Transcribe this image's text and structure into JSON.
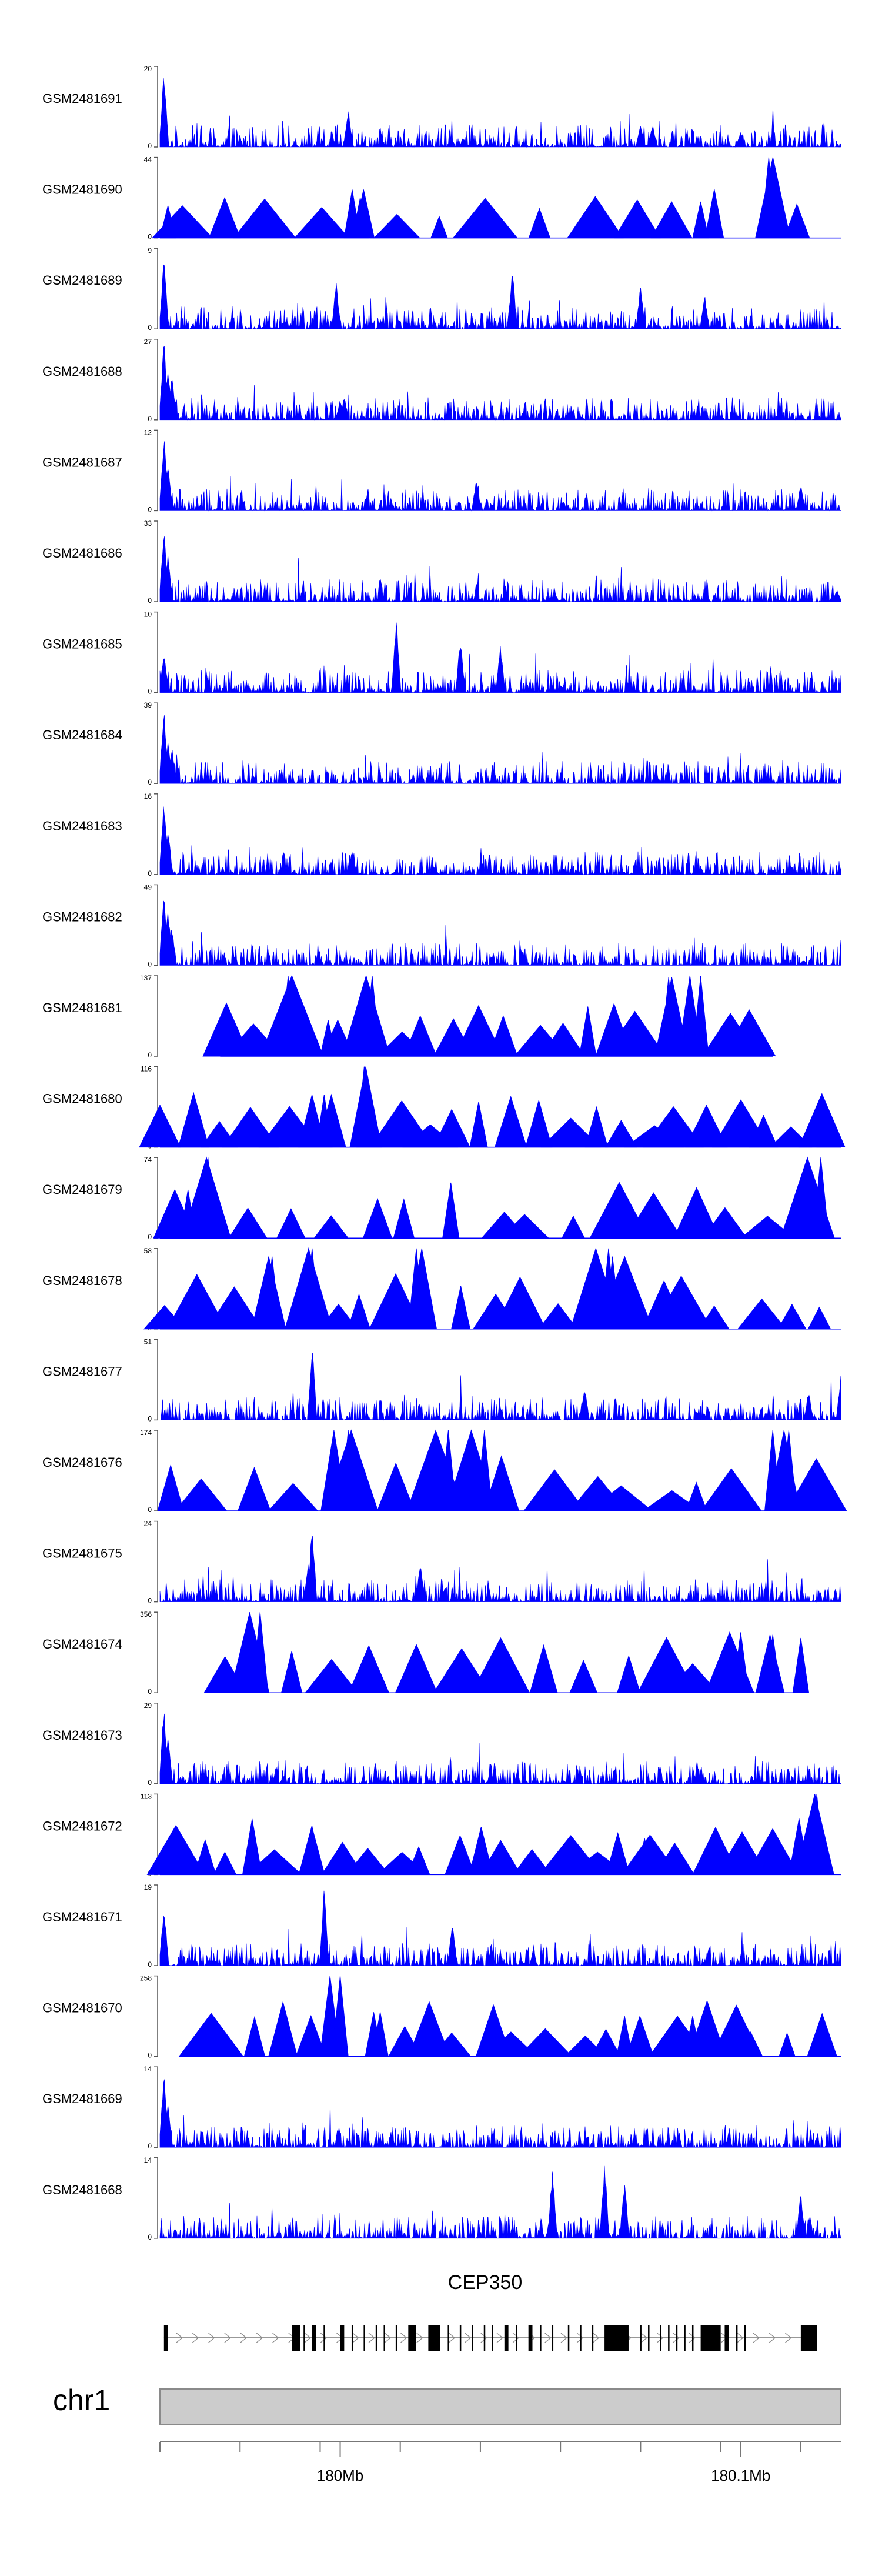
{
  "chart_data": {
    "type": "area",
    "title": "",
    "chromosome": "chr1",
    "xlim": [
      179.955,
      180.125
    ],
    "x_unit": "Mb",
    "axis_ticks": [
      {
        "pos": 180.0,
        "label": "180Mb"
      },
      {
        "pos": 180.1,
        "label": "180.1Mb"
      }
    ],
    "minor_ticks": [
      179.955,
      179.975,
      179.995,
      180.015,
      180.035,
      180.055,
      180.075,
      180.095,
      180.115
    ],
    "track_color": "#0000ff",
    "tracks": [
      {
        "name": "GSM2481691",
        "max": 20,
        "style": "dense",
        "peaks": [
          [
            179.956,
            1.0
          ],
          [
            180.002,
            0.5
          ],
          [
            180.075,
            0.3
          ],
          [
            180.078,
            0.3
          ],
          [
            180.1,
            0.2
          ]
        ]
      },
      {
        "name": "GSM2481690",
        "max": 44,
        "style": "sparse",
        "peaks": [
          [
            179.957,
            0.4
          ],
          [
            180.003,
            0.6
          ],
          [
            180.005,
            0.5
          ],
          [
            180.09,
            0.45
          ],
          [
            180.107,
            1.0
          ]
        ]
      },
      {
        "name": "GSM2481689",
        "max": 9,
        "style": "dense",
        "peaks": [
          [
            179.956,
            0.9
          ],
          [
            179.999,
            0.6
          ],
          [
            180.043,
            0.8
          ],
          [
            180.075,
            0.55
          ],
          [
            180.091,
            0.45
          ]
        ]
      },
      {
        "name": "GSM2481688",
        "max": 27,
        "style": "dense",
        "peaks": [
          [
            179.956,
            1.0
          ],
          [
            179.957,
            0.7
          ],
          [
            179.958,
            0.55
          ],
          [
            180.0,
            0.25
          ],
          [
            180.001,
            0.3
          ]
        ]
      },
      {
        "name": "GSM2481687",
        "max": 12,
        "style": "dense",
        "peaks": [
          [
            179.956,
            1.0
          ],
          [
            179.957,
            0.6
          ],
          [
            180.034,
            0.4
          ],
          [
            180.115,
            0.35
          ]
        ]
      },
      {
        "name": "GSM2481686",
        "max": 33,
        "style": "dense",
        "peaks": [
          [
            179.956,
            1.0
          ],
          [
            179.957,
            0.6
          ],
          [
            180.124,
            0.15
          ]
        ]
      },
      {
        "name": "GSM2481685",
        "max": 10,
        "style": "dense",
        "peaks": [
          [
            179.956,
            0.55
          ],
          [
            180.014,
            1.0
          ],
          [
            180.03,
            0.7
          ],
          [
            180.04,
            0.6
          ]
        ]
      },
      {
        "name": "GSM2481684",
        "max": 39,
        "style": "dense",
        "peaks": [
          [
            179.956,
            1.0
          ],
          [
            179.957,
            0.55
          ],
          [
            179.958,
            0.45
          ]
        ]
      },
      {
        "name": "GSM2481683",
        "max": 16,
        "style": "dense",
        "peaks": [
          [
            179.956,
            1.0
          ],
          [
            179.957,
            0.6
          ],
          [
            180.003,
            0.3
          ]
        ]
      },
      {
        "name": "GSM2481682",
        "max": 49,
        "style": "dense",
        "peaks": [
          [
            179.956,
            1.0
          ],
          [
            179.957,
            0.75
          ],
          [
            179.958,
            0.5
          ]
        ]
      },
      {
        "name": "GSM2481681",
        "max": 137,
        "style": "sparse",
        "range": [
          179.97,
          180.108
        ],
        "peaks": [
          [
            179.987,
            1.0
          ],
          [
            179.997,
            0.45
          ],
          [
            180.008,
            1.0
          ],
          [
            180.082,
            0.98
          ],
          [
            180.09,
            1.0
          ]
        ]
      },
      {
        "name": "GSM2481680",
        "max": 116,
        "style": "sparse",
        "peaks": [
          [
            179.996,
            0.65
          ],
          [
            180.006,
            1.0
          ],
          [
            180.121,
            0.45
          ]
        ]
      },
      {
        "name": "GSM2481679",
        "max": 74,
        "style": "sparse",
        "peaks": [
          [
            179.967,
            1.0
          ],
          [
            179.962,
            0.6
          ],
          [
            180.12,
            1.0
          ]
        ]
      },
      {
        "name": "GSM2481678",
        "max": 58,
        "style": "sparse",
        "peaks": [
          [
            179.983,
            0.9
          ],
          [
            179.993,
            1.0
          ],
          [
            180.019,
            1.0
          ],
          [
            180.067,
            1.0
          ],
          [
            180.068,
            0.9
          ]
        ]
      },
      {
        "name": "GSM2481677",
        "max": 51,
        "style": "dense",
        "peaks": [
          [
            179.993,
            1.0
          ],
          [
            180.061,
            0.45
          ],
          [
            180.117,
            0.35
          ],
          [
            180.125,
            0.55
          ]
        ]
      },
      {
        "name": "GSM2481676",
        "max": 174,
        "style": "sparse",
        "peaks": [
          [
            180.002,
            1.0
          ],
          [
            180.027,
            1.0
          ],
          [
            180.036,
            1.0
          ],
          [
            180.108,
            1.0
          ],
          [
            180.112,
            1.0
          ]
        ]
      },
      {
        "name": "GSM2481675",
        "max": 24,
        "style": "dense",
        "peaks": [
          [
            179.993,
            1.0
          ],
          [
            179.992,
            0.5
          ],
          [
            180.02,
            0.5
          ]
        ]
      },
      {
        "name": "GSM2481674",
        "max": 356,
        "style": "sparse",
        "range": [
          179.967,
          180.117
        ],
        "peaks": [
          [
            179.98,
            1.0
          ],
          [
            180.1,
            0.75
          ],
          [
            180.108,
            0.72
          ],
          [
            180.115,
            0.68
          ]
        ]
      },
      {
        "name": "GSM2481673",
        "max": 29,
        "style": "dense",
        "peaks": [
          [
            179.956,
            1.0
          ],
          [
            179.957,
            0.6
          ]
        ]
      },
      {
        "name": "GSM2481672",
        "max": 113,
        "style": "sparse",
        "peaks": [
          [
            179.993,
            0.6
          ],
          [
            180.076,
            0.45
          ],
          [
            180.119,
            1.0
          ]
        ]
      },
      {
        "name": "GSM2481671",
        "max": 19,
        "style": "dense",
        "peaks": [
          [
            179.956,
            0.8
          ],
          [
            179.996,
            1.0
          ],
          [
            180.028,
            0.6
          ]
        ]
      },
      {
        "name": "GSM2481670",
        "max": 258,
        "style": "sparse",
        "range": [
          179.967,
          180.125
        ],
        "peaks": [
          [
            180.0,
            1.0
          ],
          [
            180.01,
            0.55
          ],
          [
            180.071,
            0.5
          ],
          [
            180.088,
            0.5
          ]
        ]
      },
      {
        "name": "GSM2481669",
        "max": 14,
        "style": "dense",
        "peaks": [
          [
            179.956,
            1.0
          ],
          [
            179.957,
            0.55
          ]
        ]
      },
      {
        "name": "GSM2481668",
        "max": 14,
        "style": "dense",
        "peaks": [
          [
            180.053,
            0.9
          ],
          [
            180.066,
            1.0
          ],
          [
            180.071,
            0.75
          ],
          [
            180.115,
            0.6
          ]
        ]
      }
    ],
    "gene": {
      "name": "CEP350",
      "strand": "+",
      "start": 179.956,
      "end": 180.119,
      "exons": [
        [
          179.956,
          179.957
        ],
        [
          179.988,
          179.99
        ],
        [
          179.993,
          179.994
        ],
        [
          180.0,
          180.001
        ],
        [
          180.017,
          180.019
        ],
        [
          180.022,
          180.025
        ],
        [
          180.041,
          180.042
        ],
        [
          180.047,
          180.048
        ],
        [
          180.066,
          180.072
        ],
        [
          180.09,
          180.095
        ],
        [
          180.096,
          180.097
        ],
        [
          180.115,
          180.119
        ]
      ],
      "introns_exon_marks": [
        179.991,
        179.996,
        180.003,
        180.006,
        180.009,
        180.011,
        180.014,
        180.027,
        180.03,
        180.033,
        180.036,
        180.038,
        180.044,
        180.05,
        180.053,
        180.057,
        180.06,
        180.063,
        180.075,
        180.077,
        180.08,
        180.082,
        180.084,
        180.086,
        180.088,
        180.099,
        180.101
      ]
    }
  }
}
